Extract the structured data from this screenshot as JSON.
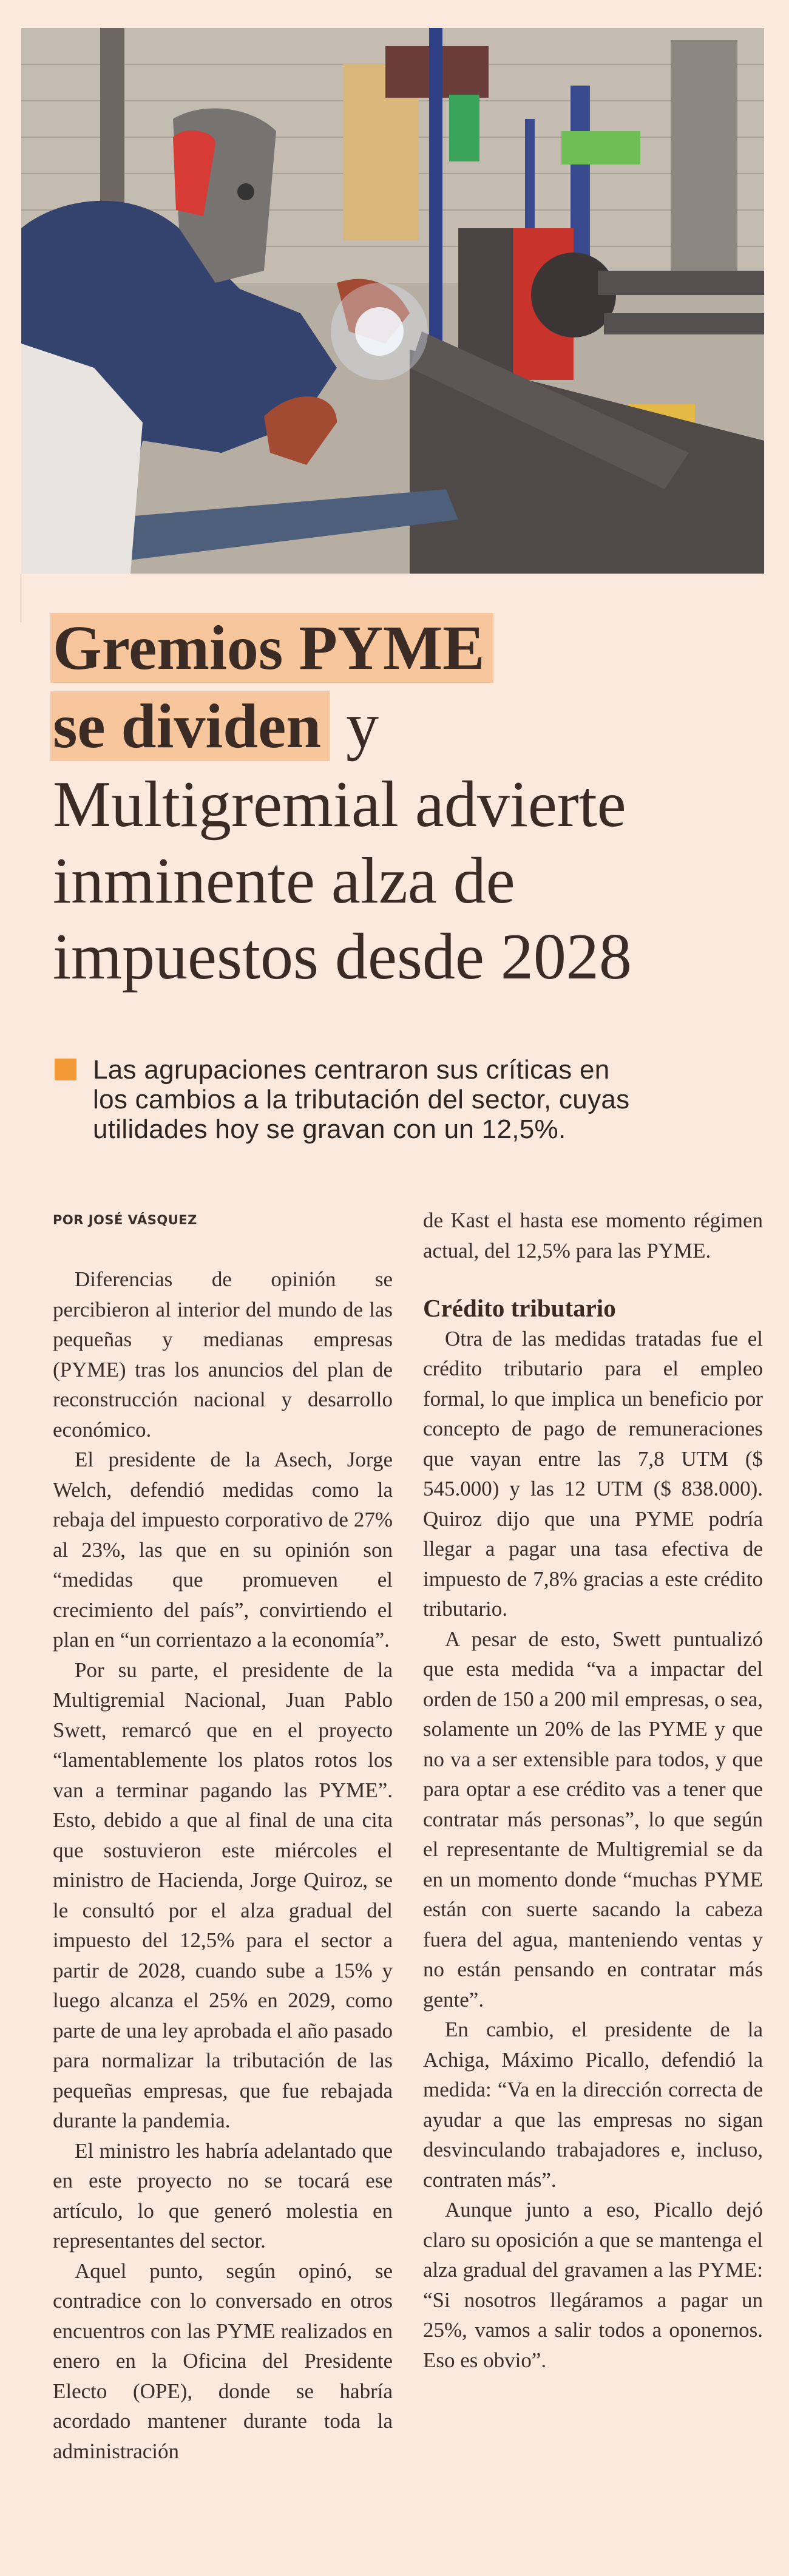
{
  "photo": {
    "alt_icon": "welder-photo"
  },
  "headline": {
    "highlight_line1": "Gremios PYME",
    "highlight_line2": "se dividen",
    "line2_rest": " y",
    "lines": [
      "Multigremial advierte",
      "inminente alza de",
      "impuestos desde 2028"
    ]
  },
  "deck": {
    "lines": [
      "Las agrupaciones centraron sus críticas en",
      "los cambios a la tributación del sector, cuyas",
      "utilidades hoy se gravan con un 12,5%."
    ],
    "accent_color": "#f39a36"
  },
  "byline": "POR JOSÉ VÁSQUEZ",
  "body_left": [
    "Diferencias de opinión se percibieron al interior del mundo de las pequeñas y medianas empresas (PYME) tras los anuncios del plan de reconstrucción nacional y desarrollo económico.",
    "El presidente de la Asech, Jorge Welch, defendió medidas como la rebaja del impuesto corporativo de 27% al 23%, las que en su opinión son “medidas que promueven el crecimiento del país”, convirtiendo el plan en “un corrientazo a la economía”.",
    "Por su parte, el presidente de la Multigremial Nacional, Juan Pablo Swett, remarcó que en el proyecto “lamentablemente los platos rotos los van a terminar pagando las PYME”. Esto, debido a que al final de una cita que sostuvieron este miércoles el ministro de Hacienda, Jorge Quiroz, se le consultó por el alza gradual del impuesto del 12,5% para el sector a partir de 2028, cuando sube a 15% y luego alcanza el 25% en 2029, como parte de una ley aprobada el año pasado para normalizar la tributación de las pequeñas empresas, que fue rebajada durante la pandemia.",
    "El ministro les habría adelantado que en este proyecto no se tocará ese artículo, lo que generó molestia en representantes del sector.",
    "Aquel punto, según opinó, se contradice con lo conversado en otros encuentros con las PYME realizados en enero en la Oficina del Presidente Electo (OPE), donde se habría acordado mantener durante toda la administración"
  ],
  "body_right_continuation": "de Kast el hasta ese momento régimen actual, del 12,5% para las PYME.",
  "subhead": "Crédito tributario",
  "body_right": [
    "Otra de las medidas tratadas fue el crédito tributario para el empleo formal, lo que implica un beneficio por concepto de pago de remuneraciones que vayan entre las 7,8 UTM ($ 545.000) y las 12 UTM ($ 838.000). Quiroz dijo que una PYME podría llegar a pagar una tasa efectiva de impuesto de 7,8% gracias a este crédito tributario.",
    "A pesar de esto, Swett puntualizó que esta medida “va a impactar del orden de 150 a 200 mil empresas, o sea, solamente un 20% de las PYME y que no va a ser extensible para todos, y que para optar a ese crédito vas a tener que contratar más personas”, lo que según el representante de Multigremial se da en un momento donde “muchas PYME están con suerte sacando la cabeza fuera del agua, manteniendo ventas y no están pensando en contratar más gente”.",
    "En cambio, el presidente de la Achiga, Máximo Picallo, defendió la medida: “Va en la dirección correcta de ayudar a que las empresas no sigan desvinculando trabajadores e, incluso, contraten más”.",
    "Aunque junto a eso, Picallo dejó claro su oposición a que se mantenga el alza gradual del gravamen a las PYME: “Si nosotros llegáramos a pagar un 25%, vamos a salir todos a oponernos. Eso es obvio”."
  ],
  "colors": {
    "background": "#fbe9dd",
    "highlight": "#f8c69c",
    "text": "#3a2e28"
  }
}
